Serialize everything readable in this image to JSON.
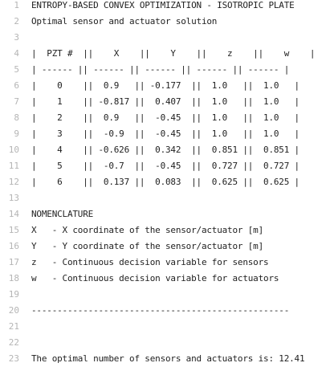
{
  "editor": {
    "lines": [
      {
        "n": "1",
        "text": "ENTROPY-BASED CONVEX OPTIMIZATION - ISOTROPIC PLATE"
      },
      {
        "n": "2",
        "text": "Optimal sensor and actuator solution"
      },
      {
        "n": "3",
        "text": ""
      },
      {
        "n": "4",
        "text": "|  PZT #  ||    X    ||    Y    ||    z    ||    w    |"
      },
      {
        "n": "5",
        "text": "| ------ || ------ || ------ || ------ || ------ |"
      },
      {
        "n": "6",
        "text": "|    0    ||  0.9   || -0.177  ||  1.0   ||  1.0   |"
      },
      {
        "n": "7",
        "text": "|    1    || -0.817 ||  0.407  ||  1.0   ||  1.0   |"
      },
      {
        "n": "8",
        "text": "|    2    ||  0.9   ||  -0.45  ||  1.0   ||  1.0   |"
      },
      {
        "n": "9",
        "text": "|    3    ||  -0.9  ||  -0.45  ||  1.0   ||  1.0   |"
      },
      {
        "n": "10",
        "text": "|    4    || -0.626 ||  0.342  ||  0.851 ||  0.851 |"
      },
      {
        "n": "11",
        "text": "|    5    ||  -0.7  ||  -0.45  ||  0.727 ||  0.727 |"
      },
      {
        "n": "12",
        "text": "|    6    ||  0.137 ||  0.083  ||  0.625 ||  0.625 |"
      },
      {
        "n": "13",
        "text": ""
      },
      {
        "n": "14",
        "text": "NOMENCLATURE"
      },
      {
        "n": "15",
        "text": "X   - X coordinate of the sensor/actuator [m]"
      },
      {
        "n": "16",
        "text": "Y   - Y coordinate of the sensor/actuator [m]"
      },
      {
        "n": "17",
        "text": "z   - Continuous decision variable for sensors"
      },
      {
        "n": "18",
        "text": "w   - Continuous decision variable for actuators"
      },
      {
        "n": "19",
        "text": ""
      },
      {
        "n": "20",
        "text": "--------------------------------------------------"
      },
      {
        "n": "21",
        "text": ""
      },
      {
        "n": "22",
        "text": ""
      },
      {
        "n": "23",
        "text": "The optimal number of sensors and actuators is: 12.41"
      }
    ]
  }
}
